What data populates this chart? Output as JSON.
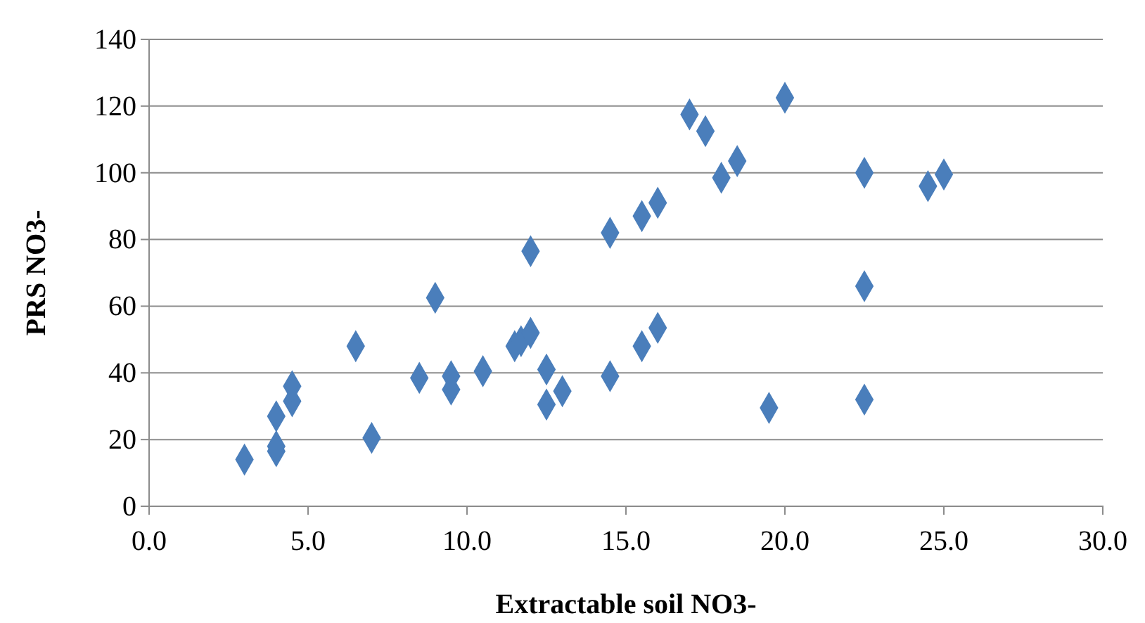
{
  "chart_data": {
    "type": "scatter",
    "xlabel": "Extractable soil NO3-",
    "ylabel": "PRS NO3-",
    "x": [
      3.0,
      4.0,
      4.0,
      4.0,
      4.5,
      4.5,
      6.5,
      7.0,
      8.5,
      9.0,
      9.5,
      9.5,
      10.5,
      11.5,
      11.7,
      12.0,
      12.0,
      12.5,
      12.5,
      13.0,
      14.5,
      14.5,
      15.5,
      16.0,
      15.5,
      16.0,
      17.0,
      17.5,
      18.0,
      18.5,
      19.5,
      20.0,
      22.5,
      22.5,
      22.5,
      24.5,
      25.0
    ],
    "values": [
      14,
      16.5,
      18,
      27,
      31.5,
      36,
      48,
      20.5,
      38.5,
      62.5,
      39,
      35,
      40.5,
      48,
      49.5,
      52,
      76.5,
      41,
      30.5,
      34.5,
      39,
      82,
      87,
      91,
      48,
      53.5,
      117.5,
      112.5,
      98.5,
      103.5,
      29.5,
      122.5,
      100,
      66,
      32,
      96,
      99.5
    ],
    "color": "#4a7ebb",
    "marker": "diamond",
    "grid": "y",
    "xlim": [
      0,
      30
    ],
    "xticks": [
      {
        "value": 0,
        "label": "0.0"
      },
      {
        "value": 5,
        "label": "5.0"
      },
      {
        "value": 10,
        "label": "10.0"
      },
      {
        "value": 15,
        "label": "15.0"
      },
      {
        "value": 20,
        "label": "20.0"
      },
      {
        "value": 25,
        "label": "25.0"
      },
      {
        "value": 30,
        "label": "30.0"
      }
    ],
    "ylim": [
      0,
      140
    ],
    "yticks": [
      0,
      20,
      40,
      60,
      80,
      100,
      120,
      140
    ]
  }
}
